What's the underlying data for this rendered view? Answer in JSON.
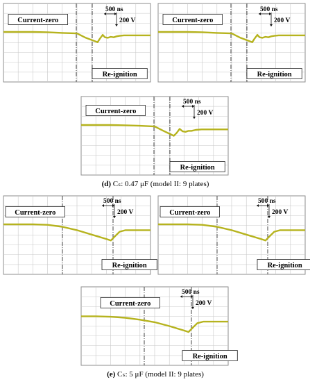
{
  "figure": {
    "caption_d_letter": "(d)",
    "caption_d_text": "Cₛ: 0.47 μF (model II: 9 plates)",
    "caption_e_letter": "(e)",
    "caption_e_text": "Cₛ: 5 μF (model II: 9 plates)"
  },
  "colors": {
    "trace": "#b6b31e",
    "grid": "#c8c8c8",
    "frame": "#8c8c8c",
    "marker": "#555555"
  },
  "chart_data": [
    {
      "type": "line",
      "group": "d",
      "panel": 1,
      "annotations": {
        "current_zero": "Current-zero",
        "reignition": "Re-ignition",
        "time_scale": "500 ns",
        "voltage_scale": "200 V"
      },
      "grid": true,
      "x_divisions": 10,
      "y_divisions": 8,
      "ylim": [
        0,
        8
      ],
      "series": [
        {
          "x": [
            0,
            1,
            2,
            3,
            4,
            5,
            5.6,
            6.4,
            6.55,
            6.75,
            6.9,
            7.1,
            7.3,
            7.5,
            7.7,
            7.9,
            8.2,
            9,
            10
          ],
          "y": [
            5.1,
            5.1,
            5.1,
            5.07,
            5.0,
            4.95,
            4.5,
            4.05,
            4.4,
            4.8,
            4.55,
            4.5,
            4.6,
            4.55,
            4.65,
            4.7,
            4.75,
            4.75,
            4.75
          ]
        }
      ]
    },
    {
      "type": "line",
      "group": "d",
      "panel": 2,
      "annotations": {
        "current_zero": "Current-zero",
        "reignition": "Re-ignition",
        "time_scale": "500 ns",
        "voltage_scale": "200 V"
      },
      "grid": true,
      "x_divisions": 10,
      "y_divisions": 8,
      "ylim": [
        0,
        8
      ],
      "series": [
        {
          "x": [
            0,
            1,
            2,
            3,
            4,
            5,
            5.6,
            6.4,
            6.55,
            6.75,
            6.9,
            7.1,
            7.3,
            7.5,
            7.7,
            7.9,
            8.2,
            9,
            10
          ],
          "y": [
            5.1,
            5.1,
            5.1,
            5.07,
            5.0,
            4.95,
            4.5,
            4.05,
            4.4,
            4.8,
            4.55,
            4.5,
            4.6,
            4.55,
            4.65,
            4.7,
            4.75,
            4.75,
            4.75
          ]
        }
      ]
    },
    {
      "type": "line",
      "group": "d",
      "panel": 3,
      "annotations": {
        "current_zero": "Current-zero",
        "reignition": "Re-ignition",
        "time_scale": "500 ns",
        "voltage_scale": "200 V"
      },
      "grid": true,
      "x_divisions": 10,
      "y_divisions": 8,
      "ylim": [
        0,
        8
      ],
      "series": [
        {
          "x": [
            0,
            1,
            2,
            3,
            4,
            5,
            5.6,
            6.3,
            6.5,
            6.7,
            6.9,
            7.1,
            7.3,
            7.5,
            7.8,
            8.2,
            9,
            10
          ],
          "y": [
            5.1,
            5.1,
            5.1,
            5.07,
            5.02,
            4.95,
            4.5,
            4.0,
            4.3,
            4.7,
            4.45,
            4.4,
            4.5,
            4.5,
            4.6,
            4.65,
            4.65,
            4.65
          ]
        }
      ]
    },
    {
      "type": "line",
      "group": "e",
      "panel": 1,
      "annotations": {
        "current_zero": "Current-zero",
        "reignition": "Re-ignition",
        "time_scale": "500 ns",
        "voltage_scale": "200 V"
      },
      "grid": true,
      "x_divisions": 10,
      "y_divisions": 8,
      "ylim": [
        0,
        8
      ],
      "series": [
        {
          "x": [
            0,
            1,
            2,
            3,
            4,
            5,
            6,
            7,
            7.3,
            7.6,
            7.9,
            8.3,
            8.8,
            10
          ],
          "y": [
            5.1,
            5.1,
            5.1,
            5.05,
            4.85,
            4.5,
            4.05,
            3.6,
            3.45,
            3.9,
            4.35,
            4.5,
            4.5,
            4.5
          ]
        }
      ]
    },
    {
      "type": "line",
      "group": "e",
      "panel": 2,
      "annotations": {
        "current_zero": "Current-zero",
        "reignition": "Re-ignition",
        "time_scale": "500 ns",
        "voltage_scale": "200 V"
      },
      "grid": true,
      "x_divisions": 10,
      "y_divisions": 8,
      "ylim": [
        0,
        8
      ],
      "series": [
        {
          "x": [
            0,
            1,
            2,
            3,
            4,
            5,
            6,
            7,
            7.3,
            7.6,
            7.9,
            8.3,
            8.8,
            10
          ],
          "y": [
            5.1,
            5.1,
            5.1,
            5.05,
            4.85,
            4.5,
            4.05,
            3.6,
            3.45,
            3.9,
            4.35,
            4.5,
            4.5,
            4.5
          ]
        }
      ]
    },
    {
      "type": "line",
      "group": "e",
      "panel": 3,
      "annotations": {
        "current_zero": "Current-zero",
        "reignition": "Re-ignition",
        "time_scale": "500 ns",
        "voltage_scale": "200 V"
      },
      "grid": true,
      "x_divisions": 10,
      "y_divisions": 8,
      "ylim": [
        0,
        8
      ],
      "series": [
        {
          "x": [
            0,
            1,
            2,
            3,
            4,
            5,
            6,
            7,
            7.3,
            7.6,
            7.9,
            8.3,
            8.8,
            10
          ],
          "y": [
            5.0,
            5.0,
            4.95,
            4.85,
            4.65,
            4.4,
            4.0,
            3.55,
            3.4,
            3.85,
            4.3,
            4.45,
            4.45,
            4.45
          ]
        }
      ]
    }
  ]
}
